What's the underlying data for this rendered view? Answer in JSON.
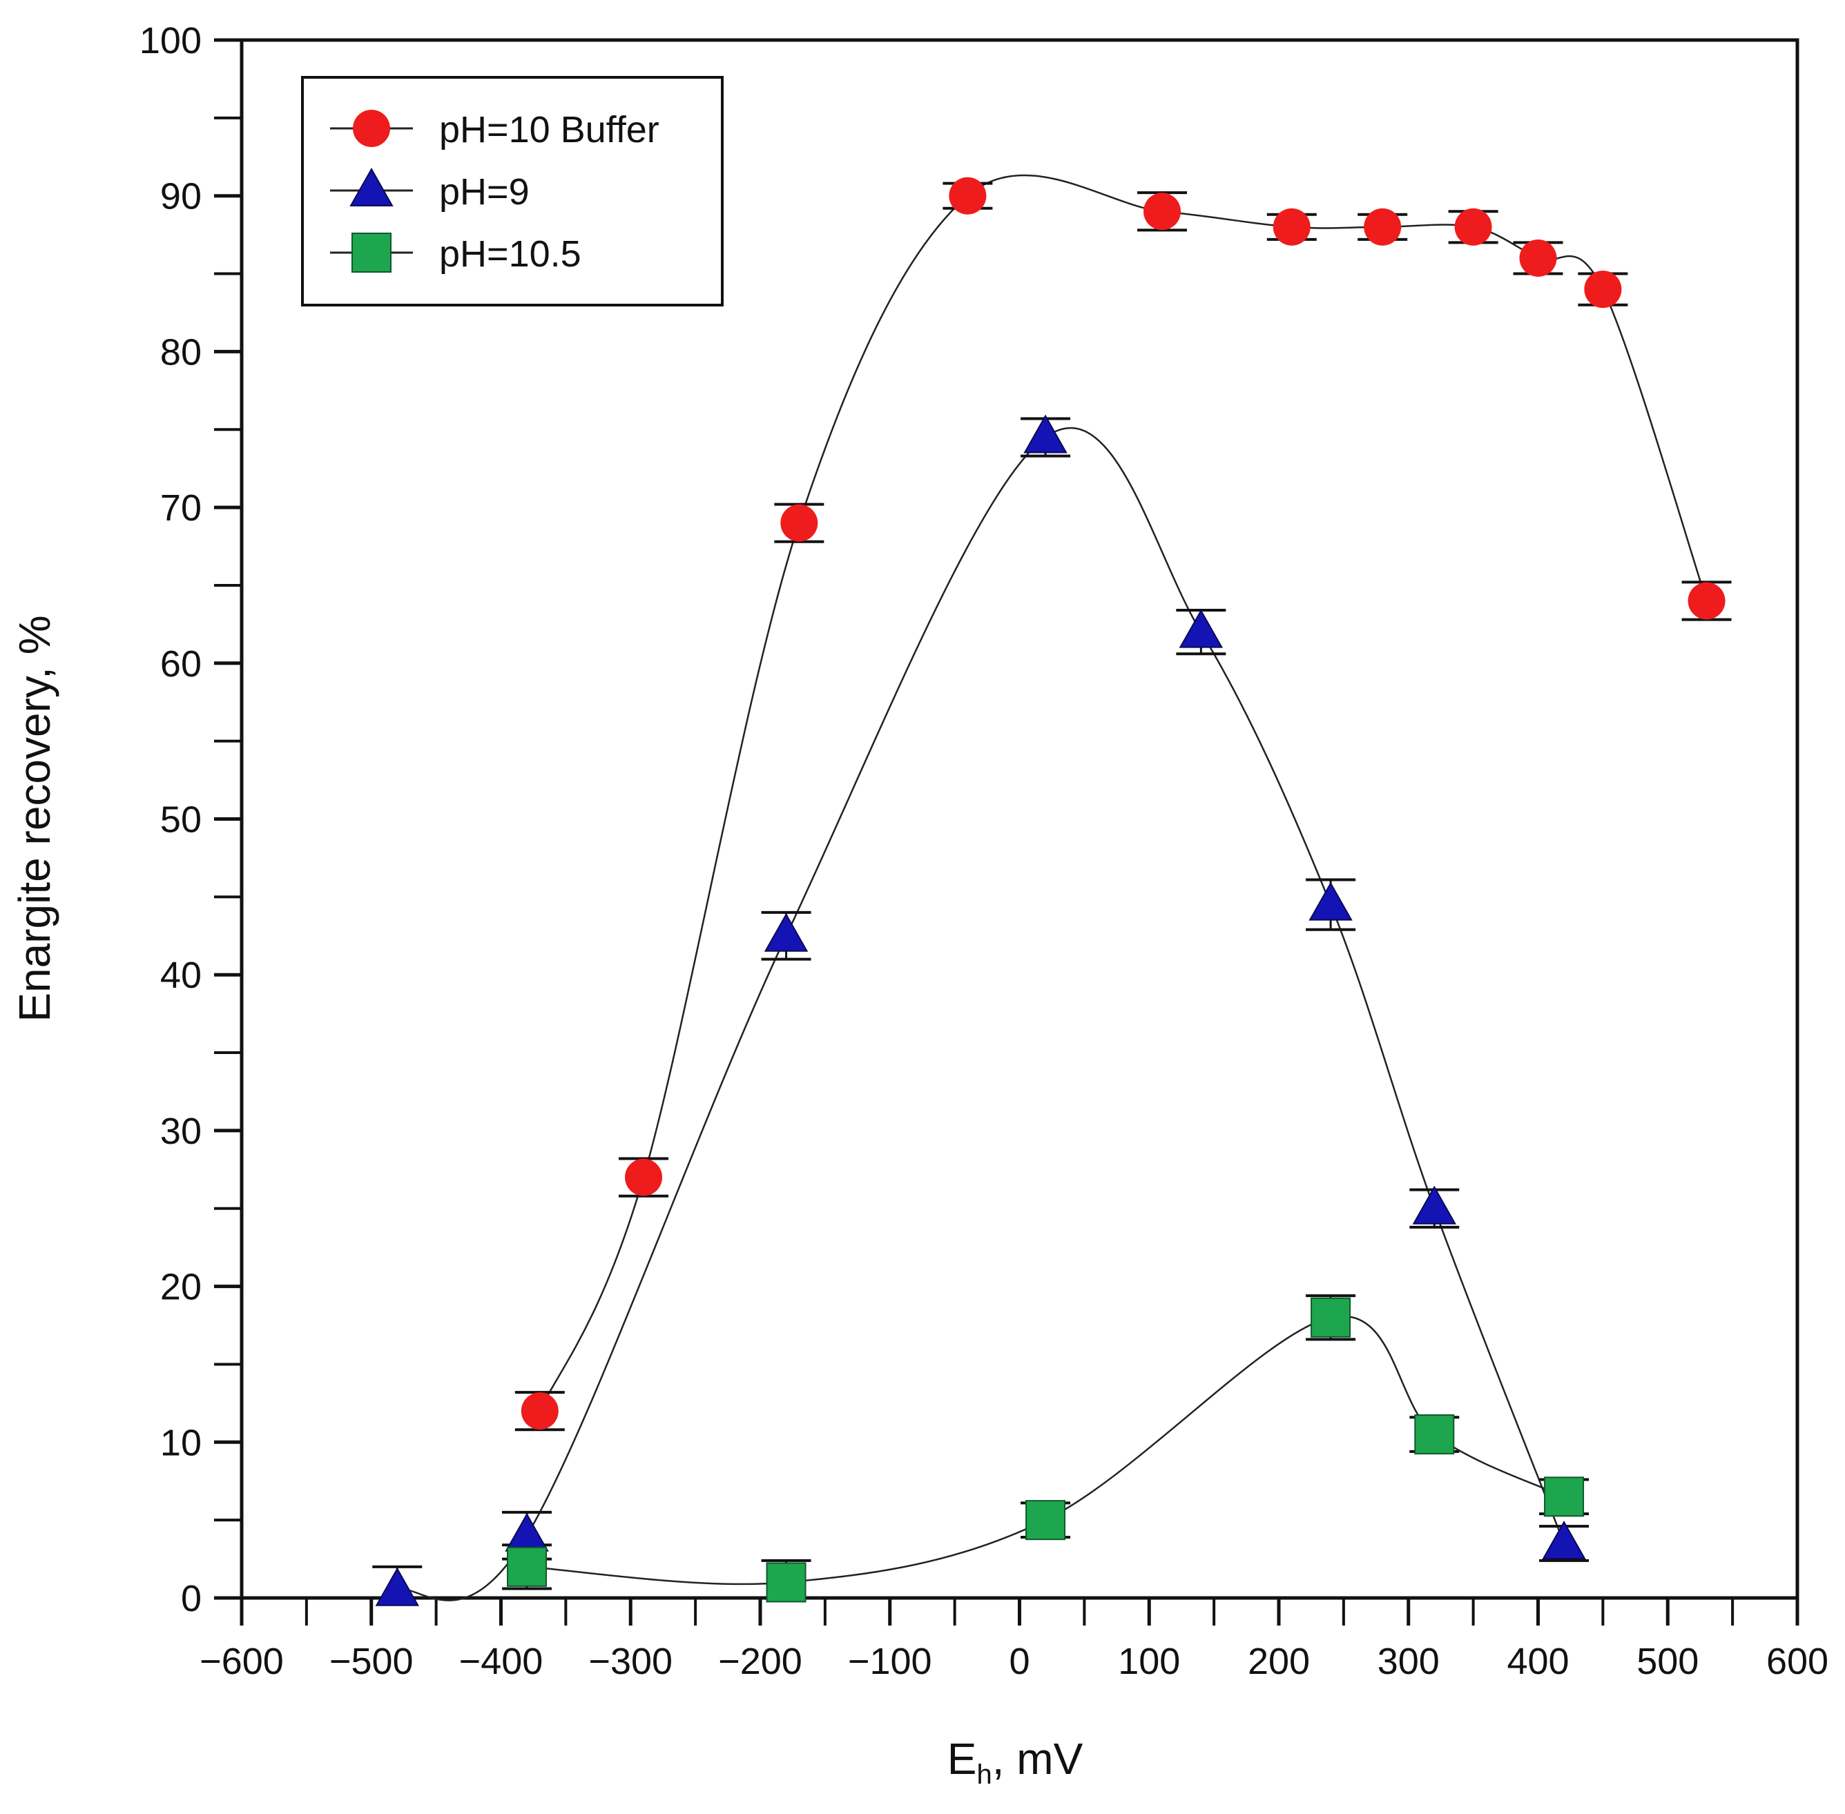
{
  "chart_data": {
    "type": "scatter",
    "xlabel_main": "E",
    "xlabel_sub": "h",
    "xlabel_rest": ", mV",
    "ylabel": "Enargite recovery, %",
    "xlim": [
      -600,
      600
    ],
    "ylim": [
      0,
      100
    ],
    "x_ticks": [
      -600,
      -500,
      -400,
      -300,
      -200,
      -100,
      0,
      100,
      200,
      300,
      400,
      500,
      600
    ],
    "x_tick_labels": [
      "−600",
      "−500",
      "−400",
      "−300",
      "−200",
      "−100",
      "0",
      "100",
      "200",
      "300",
      "400",
      "500",
      "600"
    ],
    "y_ticks": [
      0,
      10,
      20,
      30,
      40,
      50,
      60,
      70,
      80,
      90,
      100
    ],
    "y_tick_labels": [
      "0",
      "10",
      "20",
      "30",
      "40",
      "50",
      "60",
      "70",
      "80",
      "90",
      "100"
    ],
    "grid": false,
    "legend_position": "top-left",
    "series": [
      {
        "name": "pH=10 Buffer",
        "marker": "circle",
        "color": "#ee1c1c",
        "x": [
          -370,
          -290,
          -170,
          -40,
          110,
          210,
          280,
          350,
          400,
          450,
          530
        ],
        "y": [
          12,
          27,
          69,
          90,
          89,
          88,
          88,
          88,
          86,
          84,
          64
        ],
        "err": [
          1.2,
          1.2,
          1.2,
          0.8,
          1.2,
          0.8,
          0.8,
          1.0,
          1.0,
          1.0,
          1.2
        ]
      },
      {
        "name": "pH=9",
        "marker": "triangle",
        "color": "#1414b4",
        "x": [
          -480,
          -380,
          -180,
          20,
          140,
          240,
          320,
          420
        ],
        "y": [
          0.5,
          4,
          42.5,
          74.5,
          62,
          44.5,
          25,
          3.5
        ],
        "err": [
          1.5,
          1.5,
          1.5,
          1.2,
          1.4,
          1.6,
          1.2,
          1.1
        ]
      },
      {
        "name": "pH=10.5",
        "marker": "square",
        "color": "#1ea64e",
        "x": [
          -380,
          -180,
          20,
          240,
          320,
          420
        ],
        "y": [
          2,
          1,
          5,
          18,
          10.5,
          6.5
        ],
        "err": [
          1.4,
          1.4,
          1.1,
          1.4,
          1.1,
          1.1
        ]
      }
    ]
  }
}
